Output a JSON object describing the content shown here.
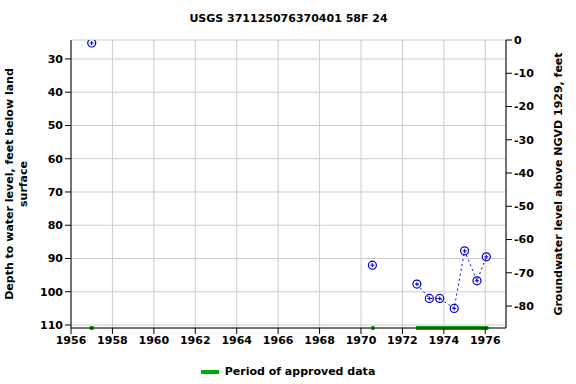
{
  "chart_data": {
    "type": "line",
    "title": "USGS 371125076370401 58F 24",
    "y_label": "Depth to water level, feet below land surface",
    "y2_label": "Groundwater level above NGVD 1929, feet",
    "x": [
      1957.0,
      1970.55,
      1972.7,
      1973.3,
      1973.8,
      1974.5,
      1975.0,
      1975.6,
      1976.05
    ],
    "series": [
      {
        "values": [
          25.2,
          92,
          null,
          null,
          null,
          null,
          null,
          null,
          null
        ],
        "color": "#0000cc",
        "marker": "circle",
        "line_style": "none"
      },
      {
        "values": [
          null,
          null,
          97.7,
          102,
          102,
          105,
          87.7,
          96.7,
          89.5
        ],
        "color": "#0000cc",
        "marker": "circle",
        "line_style": "dotted"
      }
    ],
    "xlim": [
      1956,
      1977
    ],
    "xticks": [
      1956,
      1958,
      1960,
      1962,
      1964,
      1966,
      1968,
      1970,
      1972,
      1974,
      1976
    ],
    "ylim": [
      24.3,
      110.9
    ],
    "yticks": [
      30,
      40,
      50,
      60,
      70,
      80,
      90,
      100,
      110
    ],
    "y2lim": [
      -86.6,
      0
    ],
    "y2ticks": [
      0,
      -10,
      -20,
      -30,
      -40,
      -50,
      -60,
      -70,
      -80
    ],
    "approved_periods": {
      "name": "Period of approved data",
      "color": "#00aa00",
      "ranges": [
        [
          1956.9,
          1957.1
        ],
        [
          1970.5,
          1970.65
        ],
        [
          1972.65,
          1976.15
        ]
      ]
    },
    "legend": "bottom",
    "grid": true
  }
}
